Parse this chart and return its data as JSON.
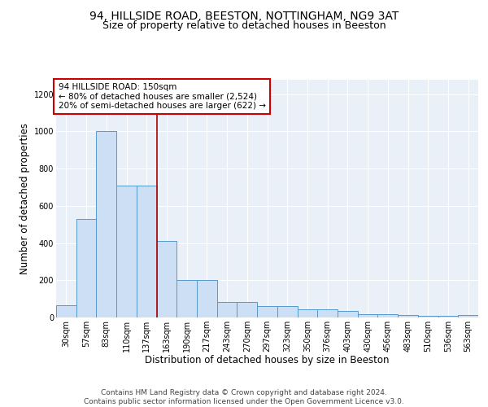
{
  "title1": "94, HILLSIDE ROAD, BEESTON, NOTTINGHAM, NG9 3AT",
  "title2": "Size of property relative to detached houses in Beeston",
  "xlabel": "Distribution of detached houses by size in Beeston",
  "ylabel": "Number of detached properties",
  "categories": [
    "30sqm",
    "57sqm",
    "83sqm",
    "110sqm",
    "137sqm",
    "163sqm",
    "190sqm",
    "217sqm",
    "243sqm",
    "270sqm",
    "297sqm",
    "323sqm",
    "350sqm",
    "376sqm",
    "403sqm",
    "430sqm",
    "456sqm",
    "483sqm",
    "510sqm",
    "536sqm",
    "563sqm"
  ],
  "values": [
    65,
    530,
    1000,
    710,
    710,
    410,
    200,
    200,
    85,
    85,
    60,
    60,
    45,
    45,
    33,
    18,
    18,
    15,
    10,
    10,
    15
  ],
  "bar_color": "#ccdff5",
  "bar_edge_color": "#5599cc",
  "vline_x": 4.5,
  "vline_color": "#aa0000",
  "annotation_text": "94 HILLSIDE ROAD: 150sqm\n← 80% of detached houses are smaller (2,524)\n20% of semi-detached houses are larger (622) →",
  "annotation_box_color": "#ffffff",
  "annotation_box_edge": "#cc0000",
  "ylim": [
    0,
    1280
  ],
  "yticks": [
    0,
    200,
    400,
    600,
    800,
    1000,
    1200
  ],
  "background_color": "#eaf0f8",
  "grid_color": "#ffffff",
  "footer": "Contains HM Land Registry data © Crown copyright and database right 2024.\nContains public sector information licensed under the Open Government Licence v3.0.",
  "title1_fontsize": 10,
  "title2_fontsize": 9,
  "xlabel_fontsize": 8.5,
  "ylabel_fontsize": 8.5,
  "tick_fontsize": 7,
  "annotation_fontsize": 7.5,
  "footer_fontsize": 6.5
}
